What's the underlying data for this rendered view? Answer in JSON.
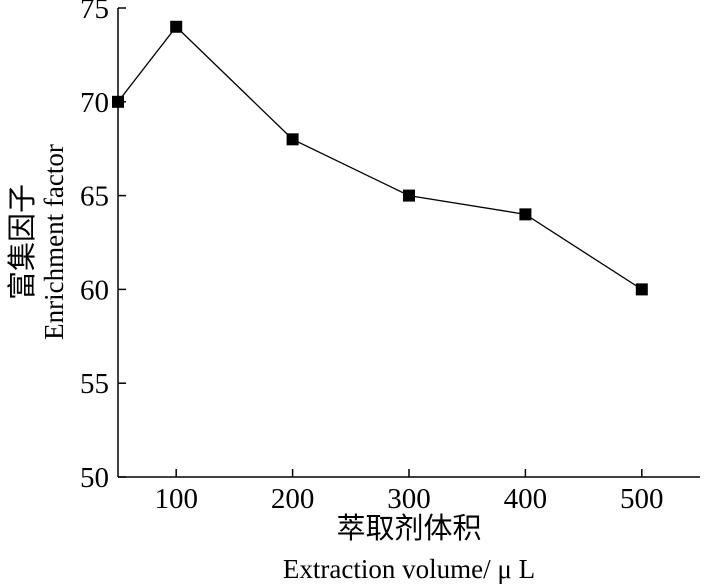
{
  "chart_data": {
    "type": "line",
    "x": [
      50,
      100,
      200,
      300,
      400,
      500
    ],
    "series": [
      {
        "values": [
          70,
          74,
          68,
          65,
          64,
          60
        ]
      }
    ],
    "xlim": [
      50,
      550
    ],
    "ylim": [
      50,
      75
    ],
    "x_ticks": [
      100,
      200,
      300,
      400,
      500
    ],
    "y_ticks": [
      50,
      55,
      60,
      65,
      70,
      75
    ],
    "xlabel_cn": "萃取剂体积",
    "xlabel": "Extraction volume/ μ L",
    "ylabel_cn": "富集因子",
    "ylabel": "Enrichment factor",
    "grid": false,
    "legend": "none",
    "colors": {
      "line": "#000000",
      "marker": "#000000"
    },
    "marker": "square"
  }
}
